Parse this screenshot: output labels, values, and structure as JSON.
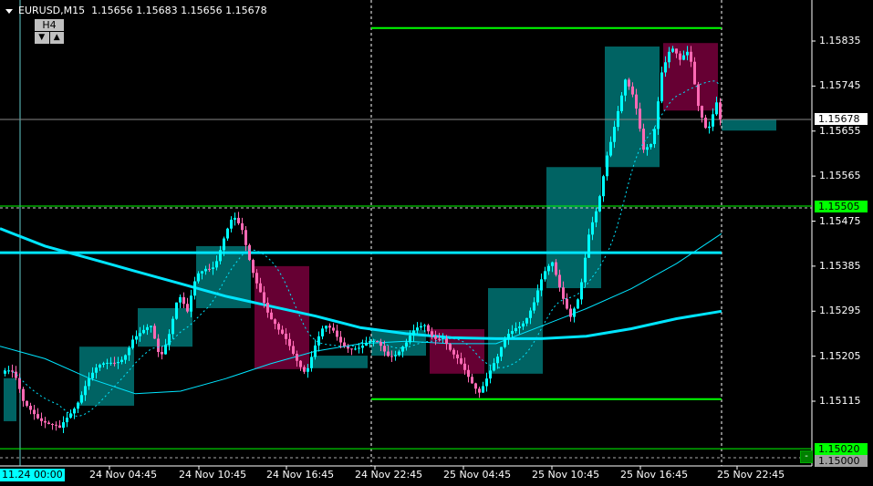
{
  "header": {
    "symbol_tf": "EURUSD,M15",
    "ohlc": "1.15656 1.15683 1.15656 1.15678"
  },
  "tf_widget": {
    "label": "H4",
    "down": "▼",
    "up": "▲"
  },
  "colors": {
    "bull": "#00ffff",
    "bear": "#ff69b4",
    "h4_bull": "#006363",
    "h4_bear": "#660033",
    "level": "#00ff00",
    "ma": "#00e5ff"
  },
  "chart_data": {
    "type": "candlestick",
    "symbol": "EURUSD",
    "timeframe": "M15",
    "ylim": [
      1.14985,
      1.15915
    ],
    "y_ticks": [
      "1.15835",
      "1.15745",
      "1.15655",
      "1.15565",
      "1.15475",
      "1.15385",
      "1.15295",
      "1.15205",
      "1.15115"
    ],
    "x_ticks": [
      "24 Nov 04:45",
      "24 Nov 10:45",
      "24 Nov 16:45",
      "24 Nov 22:45",
      "25 Nov 04:45",
      "25 Nov 10:45",
      "25 Nov 16:45",
      "25 Nov 22:45"
    ],
    "x_start_label": "11.24 00:00",
    "m15_close_samples": [
      1.1517,
      1.1516,
      1.15115,
      1.15106,
      1.15082,
      1.1506,
      1.15051,
      1.15088,
      1.15124,
      1.1516,
      1.15173,
      1.15181,
      1.15195,
      1.15213,
      1.15241,
      1.15243,
      1.15257,
      1.15206,
      1.15261,
      1.1533,
      1.15283,
      1.15361,
      1.15387,
      1.15396,
      1.15439,
      1.15474,
      1.15452,
      1.15392,
      1.15343,
      1.15279,
      1.15246,
      1.1523,
      1.15206,
      1.15179,
      1.15221,
      1.15255,
      1.15255,
      1.15239,
      1.15226,
      1.15215,
      1.15224,
      1.15233,
      1.15217,
      1.15215,
      1.15224,
      1.1525,
      1.1527,
      1.15253,
      1.15244,
      1.15201,
      1.15181,
      1.15162,
      1.15144,
      1.1517,
      1.15193,
      1.15239,
      1.15268,
      1.15286,
      1.15312,
      1.15357,
      1.15387,
      1.15339,
      1.15294,
      1.15325,
      1.15436,
      1.15501,
      1.15616,
      1.15689,
      1.15753,
      1.15707,
      1.15616,
      1.15644,
      1.1578,
      1.15817,
      1.15786,
      1.15817,
      1.15717,
      1.15658,
      1.15704,
      1.15678
    ],
    "h4_candles": [
      {
        "open": 1.15075,
        "close": 1.15161
      },
      {
        "open": 1.15106,
        "close": 1.15224
      },
      {
        "open": 1.15224,
        "close": 1.15301
      },
      {
        "open": 1.15301,
        "close": 1.15425
      },
      {
        "open": 1.15385,
        "close": 1.15179
      },
      {
        "open": 1.15181,
        "close": 1.15206
      },
      {
        "open": 1.15206,
        "close": 1.15257
      },
      {
        "open": 1.15259,
        "close": 1.1517
      },
      {
        "open": 1.1517,
        "close": 1.15341
      },
      {
        "open": 1.15341,
        "close": 1.15583
      },
      {
        "open": 1.15583,
        "close": 1.15824
      },
      {
        "open": 1.15831,
        "close": 1.15696
      },
      {
        "open": 1.15656,
        "close": 1.15678
      }
    ],
    "ma_slow": [
      1.1546,
      1.15425,
      1.154,
      1.15375,
      1.1535,
      1.15325,
      1.15305,
      1.15285,
      1.15262,
      1.1525,
      1.15242,
      1.1524,
      1.1524,
      1.15245,
      1.1526,
      1.1528,
      1.15295
    ],
    "ma_fast": [
      1.15225,
      1.152,
      1.1516,
      1.1513,
      1.15135,
      1.1516,
      1.1519,
      1.15215,
      1.1523,
      1.15235,
      1.1523,
      1.1523,
      1.15265,
      1.153,
      1.1534,
      1.1539,
      1.1545
    ],
    "levels": [
      {
        "price": 1.15861,
        "label": ""
      },
      {
        "price": 1.15119,
        "label": ""
      },
      {
        "price": 1.15505,
        "label": "1.15505"
      },
      {
        "price": 1.1502,
        "label": "1.15020"
      },
      {
        "price": 1.15412,
        "label": ""
      }
    ],
    "current_price": "1.15678",
    "bottom_price": "1.15000"
  },
  "min_button": "-"
}
